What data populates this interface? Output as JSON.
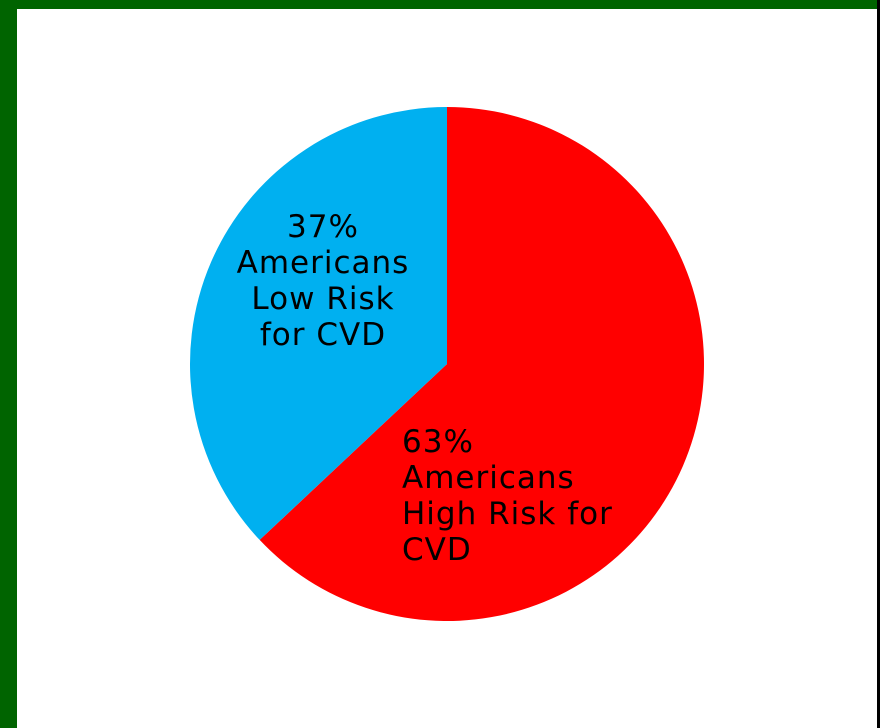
{
  "colors": {
    "border": "#006400",
    "background": "#ffffff",
    "outer": "#000000"
  },
  "chart_data": {
    "type": "pie",
    "title": "",
    "start_angle_deg": 0,
    "direction": "clockwise",
    "slices": [
      {
        "value": 63,
        "color": "#ff0000",
        "label_lines": [
          "63%",
          "Americans",
          "High Risk for",
          "CVD"
        ]
      },
      {
        "value": 37,
        "color": "#00b0f0",
        "label_lines": [
          "37%",
          "Americans",
          "Low Risk",
          "for CVD"
        ]
      }
    ]
  }
}
